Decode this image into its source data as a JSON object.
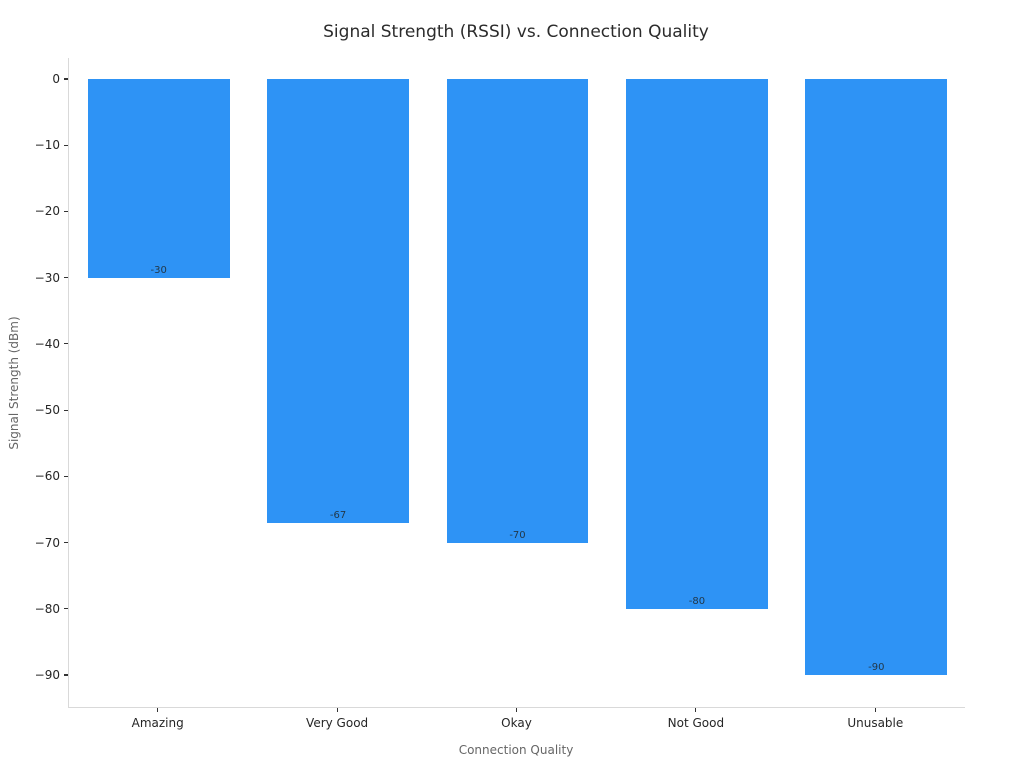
{
  "chart_data": {
    "type": "bar",
    "title": "Signal Strength (RSSI) vs. Connection Quality",
    "xlabel": "Connection Quality",
    "ylabel": "Signal Strength (dBm)",
    "categories": [
      "Amazing",
      "Very Good",
      "Okay",
      "Not Good",
      "Unusable"
    ],
    "values": [
      -30,
      -67,
      -70,
      -80,
      -90
    ],
    "bar_labels": [
      "-30",
      "-67",
      "-70",
      "-80",
      "-90"
    ],
    "yticks": [
      0,
      -10,
      -20,
      -30,
      -40,
      -50,
      -60,
      -70,
      -80,
      -90
    ],
    "ytick_labels": [
      "0",
      "−10",
      "−20",
      "−30",
      "−40",
      "−50",
      "−60",
      "−70",
      "−80",
      "−90"
    ],
    "ylim": [
      -94.5,
      4.5
    ],
    "grid": false,
    "legend": null,
    "bar_color": "#2e93f5",
    "orientation": "vertical",
    "bar_label_position": "inside-bottom"
  },
  "colors": {
    "bar": "#2e93f5",
    "spine": "#d9d9d9",
    "tick_mark": "#333333",
    "tick_label": "#262626",
    "axis_title": "#666666",
    "value_label": "#22384a",
    "background": "#ffffff"
  }
}
